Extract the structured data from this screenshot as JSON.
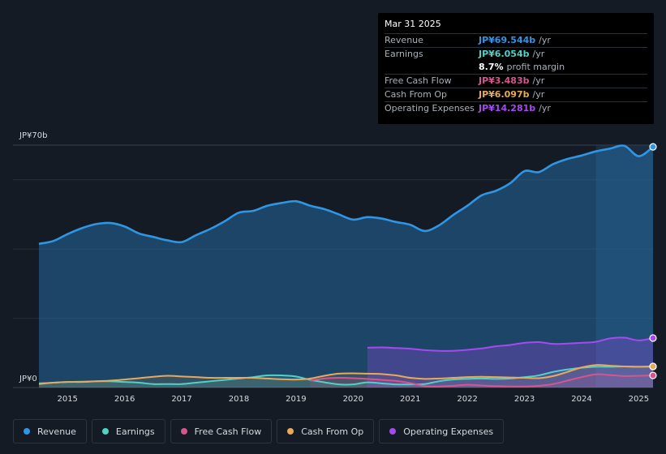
{
  "chart_data": {
    "type": "area",
    "currency_label_top": "JP¥70b",
    "currency_label_bottom": "JP¥0",
    "ylim": [
      0,
      70
    ],
    "xlim": [
      2014.5,
      2025.25
    ],
    "x_ticks": [
      "2015",
      "2016",
      "2017",
      "2018",
      "2019",
      "2020",
      "2021",
      "2022",
      "2023",
      "2024",
      "2025"
    ],
    "series": [
      {
        "name": "Revenue",
        "color": "#2f96e6",
        "points": [
          [
            2014.5,
            41.5
          ],
          [
            2014.75,
            42.3
          ],
          [
            2015.0,
            44.3
          ],
          [
            2015.25,
            46.0
          ],
          [
            2015.5,
            47.2
          ],
          [
            2015.75,
            47.5
          ],
          [
            2016.0,
            46.5
          ],
          [
            2016.25,
            44.5
          ],
          [
            2016.5,
            43.5
          ],
          [
            2016.75,
            42.5
          ],
          [
            2017.0,
            42.0
          ],
          [
            2017.25,
            44.0
          ],
          [
            2017.5,
            45.8
          ],
          [
            2017.75,
            48.0
          ],
          [
            2018.0,
            50.5
          ],
          [
            2018.25,
            51.0
          ],
          [
            2018.5,
            52.5
          ],
          [
            2018.75,
            53.3
          ],
          [
            2019.0,
            53.8
          ],
          [
            2019.25,
            52.5
          ],
          [
            2019.5,
            51.5
          ],
          [
            2019.75,
            50.0
          ],
          [
            2020.0,
            48.5
          ],
          [
            2020.25,
            49.2
          ],
          [
            2020.5,
            48.8
          ],
          [
            2020.75,
            47.8
          ],
          [
            2021.0,
            47.0
          ],
          [
            2021.25,
            45.2
          ],
          [
            2021.5,
            46.8
          ],
          [
            2021.75,
            49.8
          ],
          [
            2022.0,
            52.5
          ],
          [
            2022.25,
            55.5
          ],
          [
            2022.5,
            56.8
          ],
          [
            2022.75,
            59.0
          ],
          [
            2023.0,
            62.5
          ],
          [
            2023.25,
            62.2
          ],
          [
            2023.5,
            64.5
          ],
          [
            2023.75,
            66.0
          ],
          [
            2024.0,
            67.0
          ],
          [
            2024.25,
            68.2
          ],
          [
            2024.5,
            69.0
          ],
          [
            2024.75,
            69.8
          ],
          [
            2025.0,
            66.8
          ],
          [
            2025.25,
            69.5
          ]
        ]
      },
      {
        "name": "Earnings",
        "color": "#4fd1c5",
        "points": [
          [
            2014.5,
            1.2
          ],
          [
            2014.75,
            1.4
          ],
          [
            2015.0,
            1.6
          ],
          [
            2015.25,
            1.7
          ],
          [
            2015.5,
            1.8
          ],
          [
            2015.75,
            1.8
          ],
          [
            2016.0,
            1.6
          ],
          [
            2016.25,
            1.4
          ],
          [
            2016.5,
            1.0
          ],
          [
            2016.75,
            1.0
          ],
          [
            2017.0,
            1.0
          ],
          [
            2017.25,
            1.4
          ],
          [
            2017.5,
            1.8
          ],
          [
            2017.75,
            2.2
          ],
          [
            2018.0,
            2.6
          ],
          [
            2018.25,
            3.0
          ],
          [
            2018.5,
            3.5
          ],
          [
            2018.75,
            3.5
          ],
          [
            2019.0,
            3.2
          ],
          [
            2019.25,
            2.2
          ],
          [
            2019.5,
            1.5
          ],
          [
            2019.75,
            0.9
          ],
          [
            2020.0,
            0.9
          ],
          [
            2020.25,
            1.5
          ],
          [
            2020.5,
            1.2
          ],
          [
            2020.75,
            0.9
          ],
          [
            2021.0,
            0.9
          ],
          [
            2021.25,
            1.0
          ],
          [
            2021.5,
            1.8
          ],
          [
            2021.75,
            2.3
          ],
          [
            2022.0,
            2.5
          ],
          [
            2022.25,
            2.6
          ],
          [
            2022.5,
            2.5
          ],
          [
            2022.75,
            2.6
          ],
          [
            2023.0,
            3.0
          ],
          [
            2023.25,
            3.5
          ],
          [
            2023.5,
            4.5
          ],
          [
            2023.75,
            5.2
          ],
          [
            2024.0,
            5.7
          ],
          [
            2024.25,
            6.0
          ],
          [
            2024.5,
            6.0
          ],
          [
            2024.75,
            6.1
          ],
          [
            2025.0,
            6.0
          ],
          [
            2025.25,
            6.05
          ]
        ]
      },
      {
        "name": "Free Cash Flow",
        "color": "#d6558e",
        "points": [
          [
            2019.25,
            2.0
          ],
          [
            2019.5,
            2.6
          ],
          [
            2019.75,
            2.8
          ],
          [
            2020.0,
            2.7
          ],
          [
            2020.25,
            2.5
          ],
          [
            2020.5,
            2.2
          ],
          [
            2020.75,
            1.9
          ],
          [
            2021.0,
            1.3
          ],
          [
            2021.25,
            0.4
          ],
          [
            2021.5,
            0.3
          ],
          [
            2021.75,
            0.5
          ],
          [
            2022.0,
            0.8
          ],
          [
            2022.25,
            0.6
          ],
          [
            2022.5,
            0.4
          ],
          [
            2022.75,
            0.3
          ],
          [
            2023.0,
            0.3
          ],
          [
            2023.25,
            0.5
          ],
          [
            2023.5,
            1.0
          ],
          [
            2023.75,
            2.0
          ],
          [
            2024.0,
            3.0
          ],
          [
            2024.25,
            3.8
          ],
          [
            2024.5,
            3.6
          ],
          [
            2024.75,
            3.3
          ],
          [
            2025.0,
            3.4
          ],
          [
            2025.25,
            3.5
          ]
        ]
      },
      {
        "name": "Cash From Op",
        "color": "#e8a95a",
        "points": [
          [
            2014.5,
            1.0
          ],
          [
            2014.75,
            1.4
          ],
          [
            2015.0,
            1.6
          ],
          [
            2015.25,
            1.6
          ],
          [
            2015.5,
            1.8
          ],
          [
            2015.75,
            2.0
          ],
          [
            2016.0,
            2.3
          ],
          [
            2016.25,
            2.7
          ],
          [
            2016.5,
            3.1
          ],
          [
            2016.75,
            3.4
          ],
          [
            2017.0,
            3.2
          ],
          [
            2017.25,
            3.0
          ],
          [
            2017.5,
            2.8
          ],
          [
            2017.75,
            2.8
          ],
          [
            2018.0,
            2.8
          ],
          [
            2018.25,
            2.8
          ],
          [
            2018.5,
            2.6
          ],
          [
            2018.75,
            2.4
          ],
          [
            2019.0,
            2.3
          ],
          [
            2019.25,
            2.6
          ],
          [
            2019.5,
            3.4
          ],
          [
            2019.75,
            4.0
          ],
          [
            2020.0,
            4.1
          ],
          [
            2020.25,
            4.0
          ],
          [
            2020.5,
            3.9
          ],
          [
            2020.75,
            3.5
          ],
          [
            2021.0,
            2.8
          ],
          [
            2021.25,
            2.5
          ],
          [
            2021.5,
            2.6
          ],
          [
            2021.75,
            2.8
          ],
          [
            2022.0,
            3.0
          ],
          [
            2022.25,
            3.1
          ],
          [
            2022.5,
            3.0
          ],
          [
            2022.75,
            2.9
          ],
          [
            2023.0,
            2.8
          ],
          [
            2023.25,
            2.7
          ],
          [
            2023.5,
            3.3
          ],
          [
            2023.75,
            4.5
          ],
          [
            2024.0,
            5.8
          ],
          [
            2024.25,
            6.5
          ],
          [
            2024.5,
            6.3
          ],
          [
            2024.75,
            6.1
          ],
          [
            2025.0,
            6.0
          ],
          [
            2025.25,
            6.1
          ]
        ]
      },
      {
        "name": "Operating Expenses",
        "color": "#a64af0",
        "points": [
          [
            2020.25,
            11.5
          ],
          [
            2020.5,
            11.6
          ],
          [
            2020.75,
            11.4
          ],
          [
            2021.0,
            11.2
          ],
          [
            2021.25,
            10.8
          ],
          [
            2021.5,
            10.6
          ],
          [
            2021.75,
            10.6
          ],
          [
            2022.0,
            10.9
          ],
          [
            2022.25,
            11.3
          ],
          [
            2022.5,
            11.9
          ],
          [
            2022.75,
            12.3
          ],
          [
            2023.0,
            12.9
          ],
          [
            2023.25,
            13.1
          ],
          [
            2023.5,
            12.6
          ],
          [
            2023.75,
            12.7
          ],
          [
            2024.0,
            12.9
          ],
          [
            2024.25,
            13.2
          ],
          [
            2024.5,
            14.2
          ],
          [
            2024.75,
            14.4
          ],
          [
            2025.0,
            13.6
          ],
          [
            2025.25,
            14.28
          ]
        ]
      }
    ],
    "highlight_from": 2024.25
  },
  "tooltip": {
    "date": "Mar 31 2025",
    "rows": [
      {
        "label": "Revenue",
        "value": "JP¥69.544b",
        "unit": "/yr",
        "color": "#2f96e6"
      },
      {
        "label": "Earnings",
        "value": "JP¥6.054b",
        "unit": "/yr",
        "color": "#4fd1c5"
      },
      {
        "label": "",
        "value": "8.7%",
        "unit": "profit margin",
        "color": "#ffffff"
      },
      {
        "label": "Free Cash Flow",
        "value": "JP¥3.483b",
        "unit": "/yr",
        "color": "#d6558e"
      },
      {
        "label": "Cash From Op",
        "value": "JP¥6.097b",
        "unit": "/yr",
        "color": "#e8a95a"
      },
      {
        "label": "Operating Expenses",
        "value": "JP¥14.281b",
        "unit": "/yr",
        "color": "#a64af0"
      }
    ]
  },
  "legend": [
    {
      "label": "Revenue",
      "color": "#2f96e6"
    },
    {
      "label": "Earnings",
      "color": "#4fd1c5"
    },
    {
      "label": "Free Cash Flow",
      "color": "#d6558e"
    },
    {
      "label": "Cash From Op",
      "color": "#e8a95a"
    },
    {
      "label": "Operating Expenses",
      "color": "#a64af0"
    }
  ]
}
